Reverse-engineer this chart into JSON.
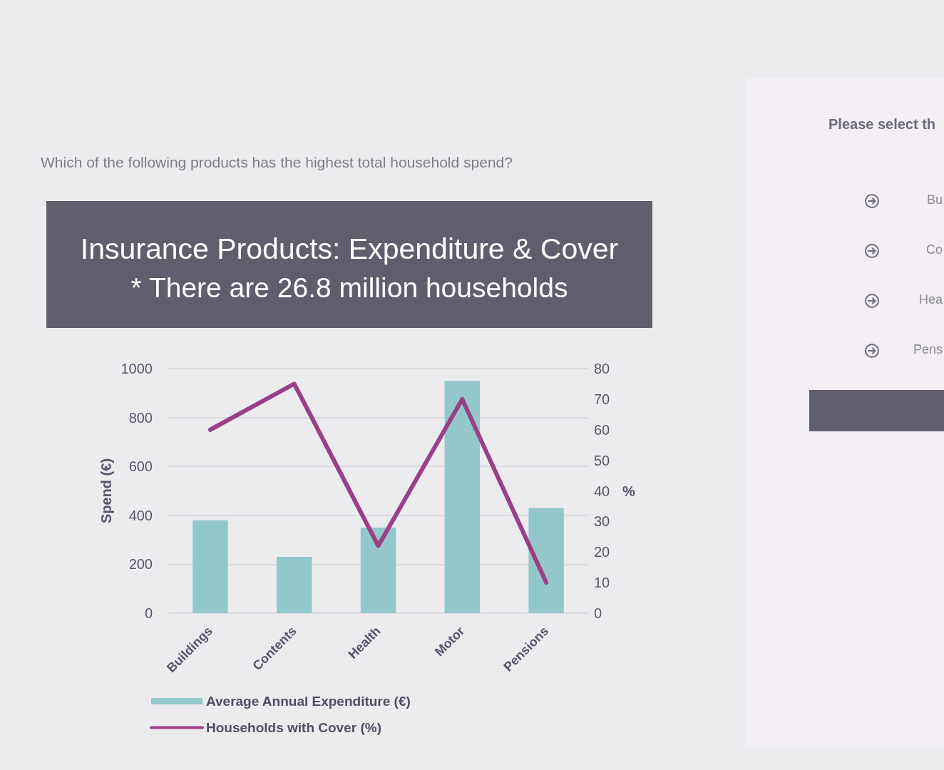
{
  "chart_data": {
    "type": "bar",
    "title": "Insurance Products: Expenditure & Cover",
    "subtitle": "* There are 26.8 million households",
    "ylabel": "Spend (€)",
    "y2label": "%",
    "categories": [
      "Buildings",
      "Contents",
      "Health",
      "Motor",
      "Pensions"
    ],
    "series": [
      {
        "name": "Average Annual Expenditure (€)",
        "color": "#93c8cb",
        "values": [
          380,
          230,
          350,
          950,
          430
        ]
      },
      {
        "name": "Households with Cover (%)",
        "type": "line",
        "axis": "y2",
        "color": "#9b3f86",
        "values": [
          60,
          75,
          22,
          70,
          10
        ]
      }
    ],
    "ylim": [
      0,
      1000
    ],
    "yticks": [
      0,
      200,
      400,
      600,
      800,
      1000
    ],
    "y2lim": [
      0,
      80
    ],
    "y2ticks": [
      0,
      10,
      20,
      30,
      40,
      50,
      60,
      70,
      80
    ],
    "grid": "y",
    "legend": "bottom",
    "marker": "none",
    "line_style": "solid",
    "annotations": [
      "Which of the following products has the highest total household spend?",
      "Please select th",
      "Bu",
      "Co",
      "Hea",
      "Pens"
    ]
  }
}
